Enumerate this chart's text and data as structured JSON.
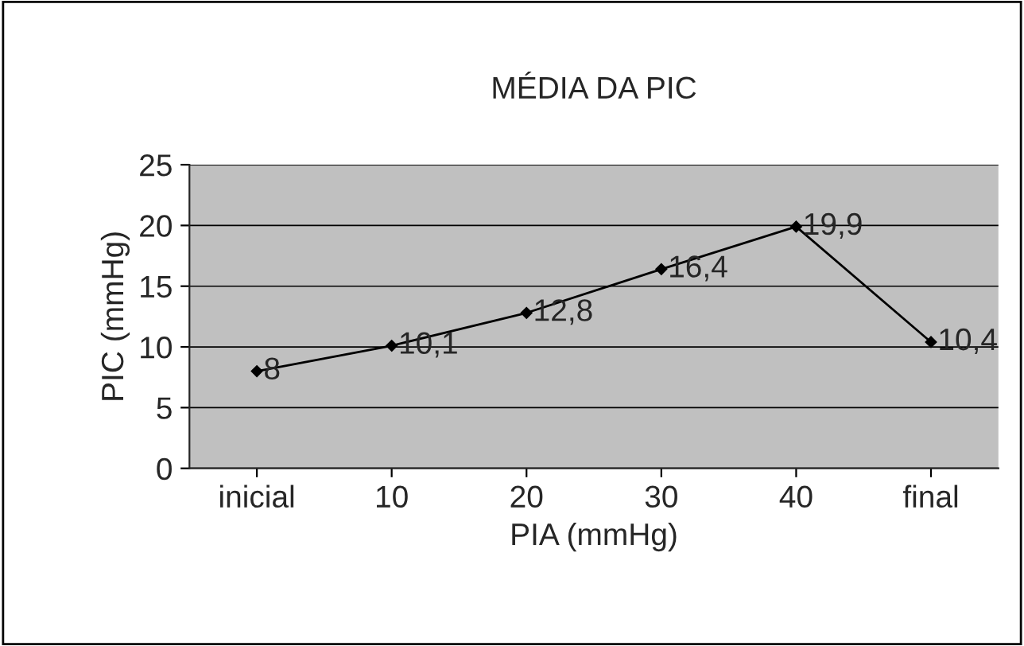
{
  "chart_data": {
    "type": "line",
    "title": "MÉDIA DA PIC",
    "xlabel": "PIA (mmHg)",
    "ylabel": "PIC (mmHg)",
    "categories": [
      "inicial",
      "10",
      "20",
      "30",
      "40",
      "final"
    ],
    "series": [
      {
        "color": "#000000",
        "values": [
          8,
          10.1,
          12.8,
          16.4,
          19.9,
          10.4
        ],
        "value_labels": [
          "8",
          "10,1",
          "12,8",
          "16,4",
          "19,9",
          "10,4"
        ]
      }
    ],
    "ylim": [
      0,
      25
    ],
    "yticks": [
      0,
      5,
      10,
      15,
      20,
      25
    ],
    "grid": "y",
    "marker": "diamond",
    "line_style": "solid",
    "legend": false
  }
}
